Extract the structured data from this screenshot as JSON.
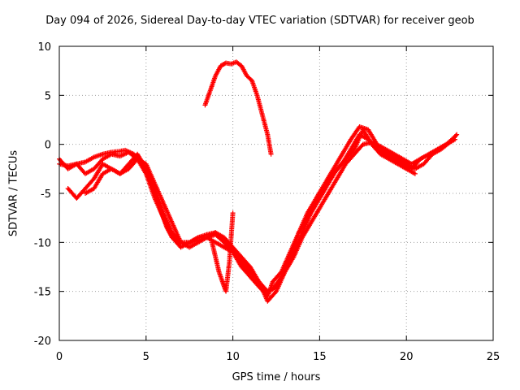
{
  "chart_data": {
    "type": "scatter",
    "title": "Day 094 of 2026, Sidereal Day-to-day VTEC variation (SDTVAR) for receiver geob",
    "xlabel": "GPS time / hours",
    "ylabel": "SDTVAR / TECUs",
    "xlim": [
      0,
      25
    ],
    "ylim": [
      -20,
      10
    ],
    "xticks": [
      "0",
      "5",
      "10",
      "15",
      "20",
      "25"
    ],
    "yticks": [
      "-20",
      "-15",
      "-10",
      "-5",
      "0",
      "5",
      "10"
    ],
    "grid": true,
    "legend": "none",
    "marker": "plus",
    "color": "#ff0000",
    "series": [
      {
        "x": [
          0.0,
          0.5,
          1.0,
          1.5,
          2.0,
          2.5,
          3.0,
          3.5,
          3.8,
          4.3,
          4.8,
          5.3,
          5.8,
          6.2,
          6.5,
          7.0,
          7.5,
          8.0,
          8.5,
          9.0,
          9.5,
          10.0,
          10.5,
          11.0,
          11.5,
          12.0,
          12.3,
          12.8,
          13.3,
          13.8,
          14.3,
          14.8,
          15.3,
          15.8,
          16.3,
          16.8,
          17.3,
          17.8,
          18.3,
          18.8,
          19.3,
          19.8,
          20.3,
          20.8,
          21.3,
          21.8,
          22.3,
          22.8
        ],
        "y": [
          -2.0,
          -2.2,
          -2.0,
          -1.8,
          -1.3,
          -1.0,
          -0.8,
          -0.7,
          -0.6,
          -1.0,
          -2.0,
          -4.0,
          -6.5,
          -8.5,
          -9.5,
          -10.0,
          -10.0,
          -9.8,
          -9.5,
          -9.2,
          -10.0,
          -11.0,
          -12.5,
          -13.5,
          -14.5,
          -15.0,
          -14.8,
          -13.5,
          -11.5,
          -9.0,
          -7.0,
          -5.5,
          -4.0,
          -2.5,
          -1.0,
          0.5,
          1.8,
          1.5,
          0.0,
          -0.5,
          -1.0,
          -1.5,
          -2.0,
          -1.5,
          -1.0,
          -0.5,
          0.0,
          0.5
        ]
      },
      {
        "x": [
          0.0,
          0.5,
          1.0,
          1.5,
          2.0,
          2.5,
          3.0,
          3.5,
          4.0,
          4.5,
          5.0,
          5.5,
          6.0,
          6.5,
          7.0,
          7.5,
          8.0,
          8.5,
          9.0,
          9.5,
          10.0,
          10.5,
          11.0,
          11.5,
          12.0,
          12.3,
          12.8,
          13.3,
          13.8,
          14.3,
          14.8,
          15.3,
          15.8,
          16.3,
          16.8,
          17.3,
          17.8,
          18.3,
          18.8,
          19.3,
          19.8,
          20.3,
          20.8,
          21.3,
          21.8,
          22.3,
          22.8
        ],
        "y": [
          -1.5,
          -2.5,
          -2.0,
          -3.0,
          -2.5,
          -1.5,
          -1.0,
          -1.2,
          -0.8,
          -1.5,
          -3.0,
          -5.5,
          -7.5,
          -9.5,
          -10.5,
          -10.0,
          -9.5,
          -9.5,
          -10.0,
          -10.5,
          -11.0,
          -12.0,
          -13.5,
          -14.5,
          -15.5,
          -14.0,
          -13.0,
          -11.0,
          -9.0,
          -7.5,
          -6.0,
          -4.5,
          -3.0,
          -2.0,
          -0.5,
          1.0,
          0.5,
          -0.5,
          -1.0,
          -1.5,
          -2.0,
          -2.5,
          -1.5,
          -1.0,
          -0.5,
          0.0,
          0.8
        ]
      },
      {
        "x": [
          0.5,
          1.0,
          1.5,
          2.0,
          2.5,
          3.0,
          3.5,
          4.0,
          4.5,
          5.0,
          5.5,
          6.0,
          6.5,
          7.0,
          7.5,
          8.0,
          8.5,
          9.0,
          9.5,
          10.0,
          10.5,
          11.0,
          11.5,
          12.0,
          12.5,
          13.0,
          13.5,
          14.0,
          14.5,
          15.0,
          15.5,
          16.0,
          16.5,
          17.0,
          17.5,
          18.0,
          18.5,
          19.0,
          19.5,
          20.0,
          20.5,
          21.0,
          21.5,
          22.0,
          22.5,
          22.9
        ],
        "y": [
          -4.5,
          -5.5,
          -4.5,
          -3.5,
          -2.0,
          -2.5,
          -3.0,
          -2.0,
          -1.0,
          -2.5,
          -4.5,
          -7.0,
          -9.0,
          -10.0,
          -10.0,
          -9.5,
          -9.2,
          -9.0,
          -9.8,
          -10.8,
          -11.8,
          -13.0,
          -14.0,
          -15.0,
          -14.5,
          -13.0,
          -11.5,
          -9.5,
          -8.0,
          -6.5,
          -5.0,
          -3.5,
          -2.0,
          -1.0,
          0.0,
          0.2,
          -0.3,
          -1.0,
          -1.5,
          -2.0,
          -2.5,
          -2.0,
          -1.0,
          -0.5,
          0.2,
          1.0
        ]
      },
      {
        "x": [
          1.5,
          2.0,
          2.5,
          3.0,
          3.5,
          4.0,
          4.5,
          5.0,
          5.5,
          6.0,
          6.5,
          7.0,
          7.5,
          8.0,
          8.5,
          9.0,
          9.5,
          10.0,
          10.5,
          11.0,
          11.5,
          12.0,
          12.5,
          13.0,
          13.5,
          14.0,
          14.5,
          15.0,
          15.5,
          16.0,
          16.5,
          17.0,
          17.5,
          18.0,
          18.5,
          19.0,
          19.5,
          20.0,
          20.5
        ],
        "y": [
          -5.0,
          -4.5,
          -3.0,
          -2.5,
          -3.0,
          -2.5,
          -1.5,
          -2.0,
          -4.0,
          -6.0,
          -8.0,
          -10.0,
          -10.5,
          -10.0,
          -9.5,
          -9.0,
          -9.5,
          -10.5,
          -11.5,
          -12.5,
          -14.0,
          -16.0,
          -15.0,
          -13.0,
          -11.0,
          -9.0,
          -7.0,
          -5.5,
          -4.0,
          -2.5,
          -1.5,
          -0.5,
          1.5,
          0.0,
          -1.0,
          -1.5,
          -2.0,
          -2.5,
          -3.0
        ]
      },
      {
        "x": [
          8.4,
          8.7,
          9.0,
          9.3,
          9.6,
          9.9,
          10.2,
          10.5,
          10.8,
          11.1,
          11.4,
          11.7,
          12.0,
          12.2
        ],
        "y": [
          4.0,
          5.5,
          7.0,
          8.0,
          8.3,
          8.2,
          8.4,
          8.0,
          7.0,
          6.5,
          5.0,
          3.0,
          1.0,
          -1.0
        ]
      },
      {
        "x": [
          8.8,
          9.0,
          9.2,
          9.4,
          9.6,
          9.8,
          10.0
        ],
        "y": [
          -10.0,
          -11.5,
          -13.0,
          -14.0,
          -15.0,
          -12.0,
          -7.0
        ]
      }
    ]
  }
}
